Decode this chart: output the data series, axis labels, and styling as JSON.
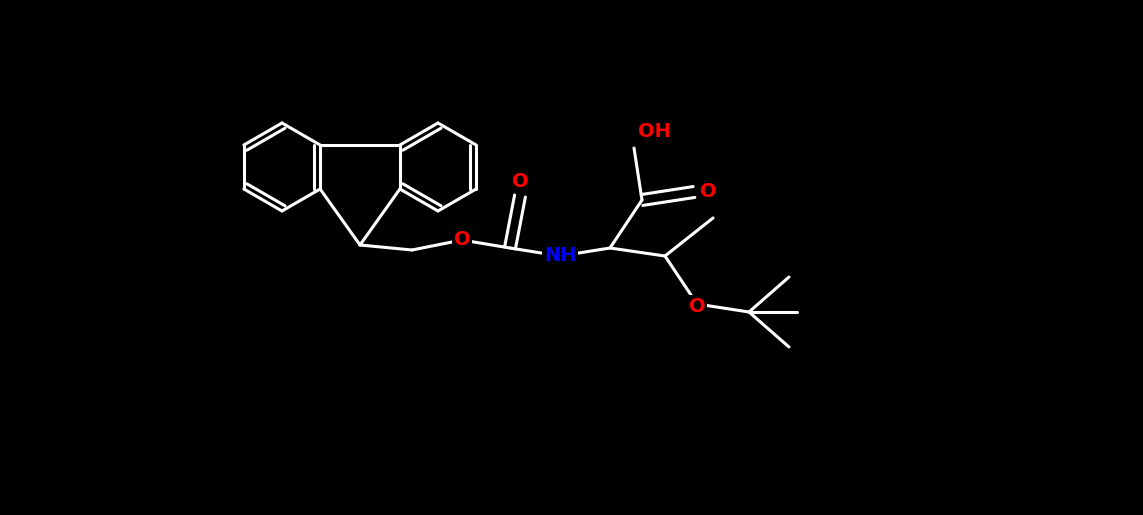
{
  "background_color": "#000000",
  "bond_color": "#ffffff",
  "atom_colors": {
    "O": "#ff0000",
    "N": "#0000ff",
    "C": "#ffffff",
    "H": "#ffffff"
  },
  "line_width": 2.2,
  "fig_width": 11.43,
  "fig_height": 5.15,
  "dpi": 100,
  "fluorene_9x": 3.6,
  "fluorene_9y": 2.7,
  "ring_size": 0.44
}
